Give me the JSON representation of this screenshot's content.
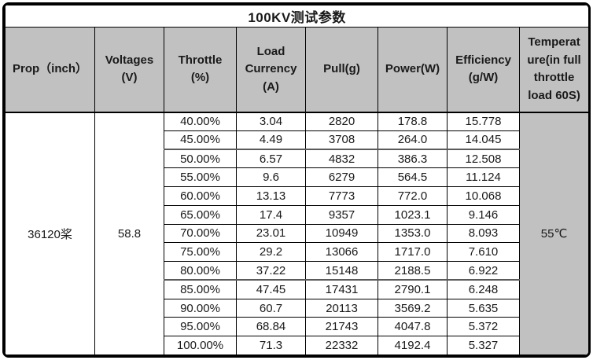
{
  "title": "100KV测试参数",
  "columns": [
    {
      "key": "prop",
      "label": "Prop（inch）"
    },
    {
      "key": "voltage",
      "label": "Voltages\n(V)"
    },
    {
      "key": "throttle",
      "label": "Throttle\n(%)"
    },
    {
      "key": "current",
      "label": "Load\nCurrency\n(A)"
    },
    {
      "key": "pull",
      "label": "Pull(g)"
    },
    {
      "key": "power",
      "label": "Power(W)"
    },
    {
      "key": "efficiency",
      "label": "Efficiency\n(g/W)"
    },
    {
      "key": "temperature",
      "label": "Temperat\nure(in full\nthrottle\nload 60S)"
    }
  ],
  "merged": {
    "prop": "36120桨",
    "voltage": "58.8",
    "temperature": "55℃"
  },
  "rows": [
    {
      "throttle": "40.00%",
      "current": "3.04",
      "pull": "2820",
      "power": "178.8",
      "efficiency": "15.778"
    },
    {
      "throttle": "45.00%",
      "current": "4.49",
      "pull": "3708",
      "power": "264.0",
      "efficiency": "14.045"
    },
    {
      "throttle": "50.00%",
      "current": "6.57",
      "pull": "4832",
      "power": "386.3",
      "efficiency": "12.508"
    },
    {
      "throttle": "55.00%",
      "current": "9.6",
      "pull": "6279",
      "power": "564.5",
      "efficiency": "11.124"
    },
    {
      "throttle": "60.00%",
      "current": "13.13",
      "pull": "7773",
      "power": "772.0",
      "efficiency": "10.068"
    },
    {
      "throttle": "65.00%",
      "current": "17.4",
      "pull": "9357",
      "power": "1023.1",
      "efficiency": "9.146"
    },
    {
      "throttle": "70.00%",
      "current": "23.01",
      "pull": "10949",
      "power": "1353.0",
      "efficiency": "8.093"
    },
    {
      "throttle": "75.00%",
      "current": "29.2",
      "pull": "13066",
      "power": "1717.0",
      "efficiency": "7.610"
    },
    {
      "throttle": "80.00%",
      "current": "37.22",
      "pull": "15148",
      "power": "2188.5",
      "efficiency": "6.922"
    },
    {
      "throttle": "85.00%",
      "current": "47.45",
      "pull": "17431",
      "power": "2790.1",
      "efficiency": "6.248"
    },
    {
      "throttle": "90.00%",
      "current": "60.7",
      "pull": "20113",
      "power": "3569.2",
      "efficiency": "5.635"
    },
    {
      "throttle": "95.00%",
      "current": "68.84",
      "pull": "21743",
      "power": "4047.8",
      "efficiency": "5.372"
    },
    {
      "throttle": "100.00%",
      "current": "71.3",
      "pull": "22332",
      "power": "4192.4",
      "efficiency": "5.327"
    }
  ],
  "colors": {
    "header_bg": "#c1c1c1",
    "border": "#000000",
    "page_bg": "#ffffff"
  }
}
